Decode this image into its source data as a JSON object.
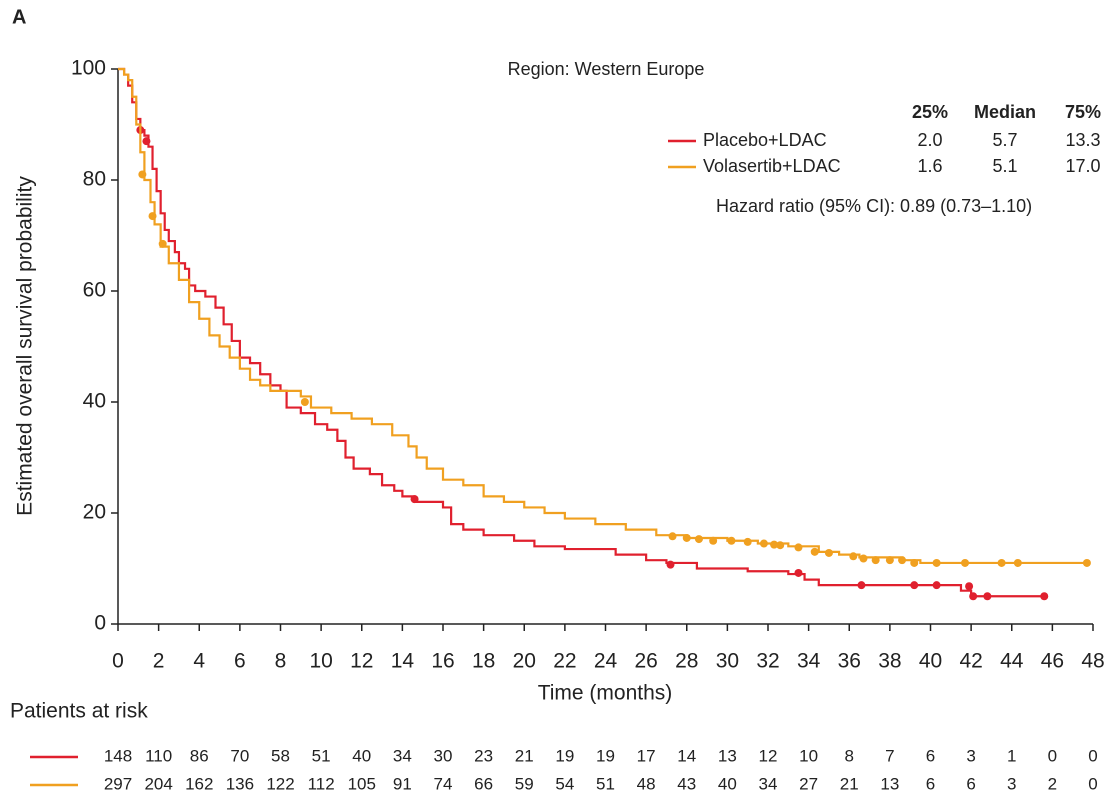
{
  "chart_data": {
    "type": "kaplan-meier",
    "panel_label": "A",
    "annotation": "Region: Western Europe",
    "x_label": "Time (months)",
    "y_label": "Estimated overall survival probability",
    "xlim": [
      0,
      48
    ],
    "ylim": [
      0,
      100
    ],
    "xticks": [
      0,
      2,
      4,
      6,
      8,
      10,
      12,
      14,
      16,
      18,
      20,
      22,
      24,
      26,
      28,
      30,
      32,
      34,
      36,
      38,
      40,
      42,
      44,
      46,
      48
    ],
    "yticks": [
      0,
      20,
      40,
      60,
      80,
      100
    ],
    "series": [
      {
        "name": "Placebo+LDAC",
        "color": "#e0202e",
        "x": [
          0,
          0.3,
          0.5,
          0.7,
          0.9,
          1.1,
          1.3,
          1.5,
          1.7,
          1.9,
          2.1,
          2.3,
          2.5,
          2.8,
          3.0,
          3.3,
          3.5,
          3.8,
          4.3,
          4.8,
          5.2,
          5.6,
          6.0,
          6.5,
          7.0,
          7.5,
          8.0,
          8.3,
          9.0,
          9.7,
          10.3,
          10.8,
          11.2,
          11.6,
          12.4,
          13.0,
          13.6,
          14.0,
          14.6,
          16.0,
          16.4,
          17.0,
          18.0,
          19.5,
          20.5,
          22.0,
          24.5,
          26.0,
          27.0,
          28.5,
          31.0,
          33.0,
          33.8,
          34.5,
          36.5,
          41.5,
          42.0,
          45.6
        ],
        "values": [
          100,
          99,
          97,
          94,
          91,
          89,
          88,
          86,
          82,
          78,
          74,
          71,
          69,
          67,
          65,
          64,
          61,
          60,
          59,
          57,
          54,
          51,
          48,
          47,
          45,
          43,
          42,
          39,
          38,
          36,
          35,
          33,
          30,
          28,
          27,
          25,
          24,
          23,
          22,
          21,
          18,
          17,
          16,
          15,
          14,
          13.5,
          12.5,
          11.5,
          11,
          10,
          9.5,
          9,
          8,
          7,
          7,
          6,
          5,
          5
        ],
        "censor": {
          "x": [
            1.1,
            1.4,
            14.6,
            27.2,
            33.5,
            36.6,
            39.2,
            40.3,
            41.9,
            42.1,
            42.8,
            45.6
          ],
          "values": [
            89,
            87,
            22.5,
            10.7,
            9.2,
            7,
            7,
            7,
            6.8,
            5,
            5,
            5
          ]
        }
      },
      {
        "name": "Volasertib+LDAC",
        "color": "#f0a020",
        "x": [
          0,
          0.3,
          0.5,
          0.7,
          0.9,
          1.1,
          1.3,
          1.6,
          1.8,
          2.1,
          2.5,
          3.0,
          3.5,
          4.0,
          4.5,
          5.0,
          5.5,
          6.0,
          6.5,
          7.0,
          7.5,
          9.0,
          9.5,
          10.5,
          11.5,
          12.5,
          13.5,
          14.3,
          14.7,
          15.2,
          16.0,
          17.0,
          18.0,
          19.0,
          20.0,
          21.0,
          22.0,
          23.5,
          25.0,
          26.5,
          28.0,
          30.0,
          31.5,
          33.0,
          34.5,
          35.5,
          36.5,
          38.5,
          39.5,
          47.7
        ],
        "values": [
          100,
          99,
          98,
          95,
          90,
          85,
          80,
          76,
          72,
          68,
          65,
          62,
          58,
          55,
          52,
          50,
          48,
          46,
          44,
          43,
          42,
          41,
          39,
          38,
          37,
          36,
          34,
          32,
          30,
          28,
          26,
          25,
          23,
          22,
          21,
          20,
          19,
          18,
          17,
          16,
          15.5,
          15,
          14.5,
          14,
          13,
          12.5,
          12,
          11.5,
          11,
          11
        ],
        "censor": {
          "x": [
            1.2,
            1.7,
            2.2,
            9.2,
            27.3,
            28,
            28.6,
            29.3,
            30.2,
            31,
            31.8,
            32.3,
            32.6,
            33.5,
            34.3,
            35,
            36.2,
            36.7,
            37.3,
            38,
            38.6,
            39.2,
            40.3,
            41.7,
            43.5,
            44.3,
            47.7
          ],
          "values": [
            81,
            73.5,
            68.5,
            40,
            15.8,
            15.5,
            15.3,
            15,
            15,
            14.8,
            14.5,
            14.3,
            14.2,
            13.8,
            13,
            12.8,
            12.2,
            11.8,
            11.5,
            11.5,
            11.5,
            11,
            11,
            11,
            11,
            11,
            11
          ]
        }
      }
    ],
    "stats": {
      "headers": [
        "25%",
        "Median",
        "75%"
      ],
      "rows": [
        [
          "2.0",
          "5.7",
          "13.3"
        ],
        [
          "1.6",
          "5.1",
          "17.0"
        ]
      ]
    },
    "hazard_ratio": "Hazard ratio (95% CI): 0.89 (0.73–1.10)",
    "risk_table": {
      "title": "Patients at risk",
      "rows": [
        [
          "148",
          "110",
          "86",
          "70",
          "58",
          "51",
          "40",
          "34",
          "30",
          "23",
          "21",
          "19",
          "19",
          "17",
          "14",
          "13",
          "12",
          "10",
          "8",
          "7",
          "6",
          "3",
          "1",
          "0",
          "0"
        ],
        [
          "297",
          "204",
          "162",
          "136",
          "122",
          "112",
          "105",
          "91",
          "74",
          "66",
          "59",
          "54",
          "51",
          "48",
          "43",
          "40",
          "34",
          "27",
          "21",
          "13",
          "6",
          "6",
          "3",
          "2",
          "0"
        ]
      ]
    }
  }
}
